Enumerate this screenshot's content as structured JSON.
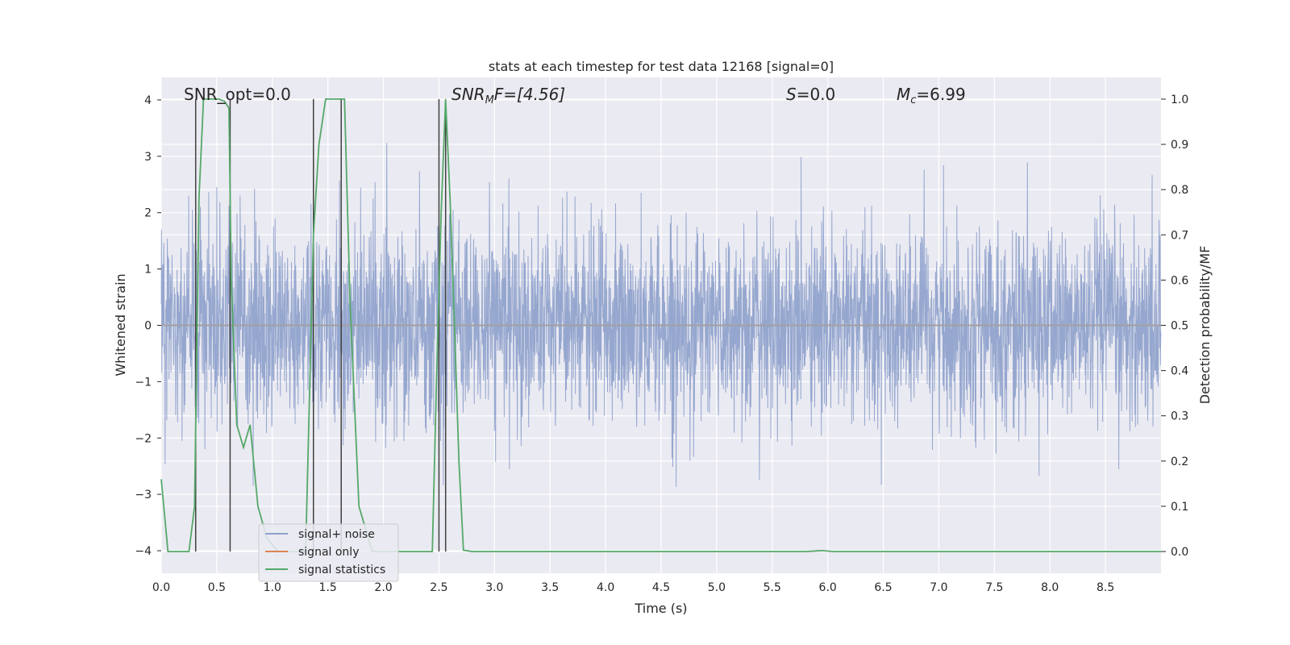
{
  "chart_data": {
    "type": "line",
    "title": "stats at each timestep for test data 12168 [signal=0]",
    "xlabel": "Time (s)",
    "ylabel": "Whitened strain",
    "y2label": "Detection probability/MF",
    "xlim": [
      0,
      9.0
    ],
    "ylim": [
      -4.4,
      4.4
    ],
    "y2lim": [
      -0.048,
      1.048
    ],
    "xticks": [
      0.0,
      0.5,
      1.0,
      1.5,
      2.0,
      2.5,
      3.0,
      3.5,
      4.0,
      4.5,
      5.0,
      5.5,
      6.0,
      6.5,
      7.0,
      7.5,
      8.0,
      8.5
    ],
    "xtick_labels": [
      "0.0",
      "0.5",
      "1.0",
      "1.5",
      "2.0",
      "2.5",
      "3.0",
      "3.5",
      "4.0",
      "4.5",
      "5.0",
      "5.5",
      "6.0",
      "6.5",
      "7.0",
      "7.5",
      "8.0",
      "8.5"
    ],
    "yticks": [
      4,
      3,
      2,
      1,
      0,
      -1,
      -2,
      -3,
      -4
    ],
    "ytick_labels": [
      "4",
      "3",
      "2",
      "1",
      "0",
      "−1",
      "−2",
      "−3",
      "−4"
    ],
    "y2ticks": [
      1.0,
      0.9,
      0.8,
      0.7,
      0.6,
      0.5,
      0.4,
      0.3,
      0.2,
      0.1,
      0.0
    ],
    "y2tick_labels": [
      "1.0",
      "0.9",
      "0.8",
      "0.7",
      "0.6",
      "0.5",
      "0.4",
      "0.3",
      "0.2",
      "0.1",
      "0.0"
    ],
    "grid": true,
    "legend_position": "lower-left",
    "annotations": {
      "snr_opt": "SNR_opt=0.0",
      "snr_mf_main": "SNR",
      "snr_mf_sub": "M",
      "snr_mf_rest": "F=[4.56]",
      "s_main": "S",
      "s_rest": "=0.0",
      "mc_main": "M",
      "mc_sub": "c",
      "mc_rest": "=6.99"
    },
    "colors": {
      "noise": "#8da0cb",
      "signal": "#dd8452",
      "stats": "#55a868",
      "vline": "#404040",
      "background": "#eaeaf2",
      "grid": "#ffffff"
    },
    "series": [
      {
        "name": "signal+ noise",
        "kind": "noise",
        "amplitude_sigma": 0.85,
        "sample_rate": 400
      },
      {
        "name": "signal only",
        "kind": "flat",
        "value": 0
      },
      {
        "name": "signal statistics",
        "kind": "stats",
        "x": [
          0.0,
          0.06,
          0.12,
          0.2,
          0.25,
          0.3,
          0.34,
          0.38,
          0.45,
          0.52,
          0.57,
          0.61,
          0.63,
          0.68,
          0.74,
          0.8,
          0.87,
          0.95,
          1.05,
          1.2,
          1.3,
          1.37,
          1.42,
          1.48,
          1.55,
          1.6,
          1.65,
          1.7,
          1.78,
          1.9,
          2.1,
          2.3,
          2.44,
          2.48,
          2.52,
          2.56,
          2.6,
          2.64,
          2.68,
          2.72,
          2.8,
          3.0,
          4.0,
          5.0,
          5.8,
          5.95,
          6.05,
          7.0,
          8.0,
          9.0
        ],
        "y": [
          0.16,
          0.0,
          0.0,
          0.0,
          0.0,
          0.1,
          0.78,
          1.0,
          1.0,
          1.0,
          0.995,
          0.98,
          0.6,
          0.28,
          0.23,
          0.28,
          0.1,
          0.03,
          0.0,
          0.0,
          0.0,
          0.7,
          0.9,
          1.0,
          1.0,
          1.0,
          1.0,
          0.55,
          0.1,
          0.0,
          0.0,
          0.0,
          0.0,
          0.4,
          0.75,
          1.0,
          0.78,
          0.5,
          0.2,
          0.003,
          0.0,
          0.0,
          0.0,
          0.0,
          0.0,
          0.002,
          0.0,
          0.0,
          0.0,
          0.0
        ]
      }
    ],
    "vlines_x": [
      0.31,
      0.62,
      1.37,
      1.62,
      2.5,
      2.56
    ]
  }
}
